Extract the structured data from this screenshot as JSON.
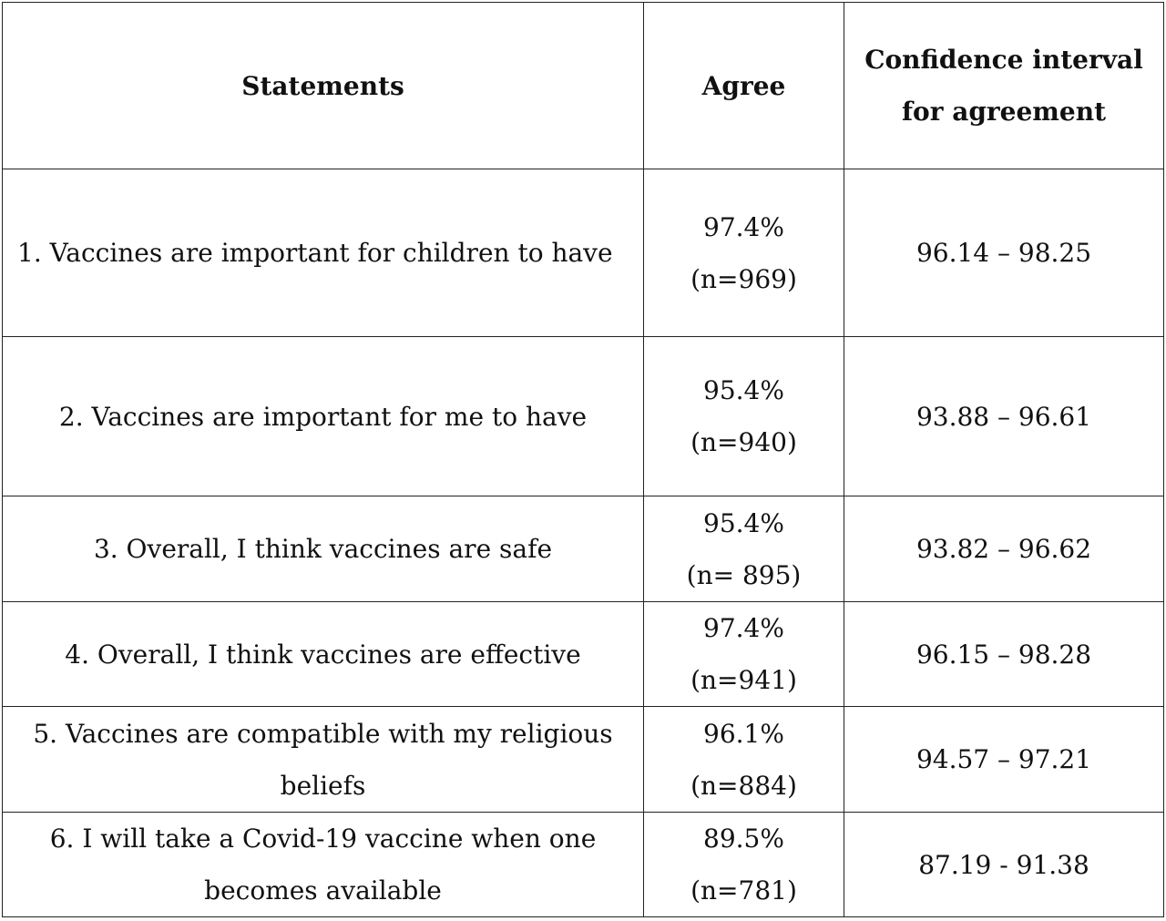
{
  "table": {
    "headers": {
      "statements": "Statements",
      "agree": "Agree",
      "ci_line1": "Confidence interval",
      "ci_line2": "for agreement"
    },
    "rows": [
      {
        "statement_line1": "1. Vaccines are important for children to have",
        "statement_line2": "",
        "agree_pct": "97.4%",
        "agree_n": "(n=969)",
        "ci": "96.14 – 98.25"
      },
      {
        "statement_line1": "2. Vaccines are important for me to have",
        "statement_line2": "",
        "agree_pct": "95.4%",
        "agree_n": "(n=940)",
        "ci": "93.88 – 96.61"
      },
      {
        "statement_line1": "3. Overall, I think vaccines are safe",
        "statement_line2": "",
        "agree_pct": "95.4%",
        "agree_n": "(n= 895)",
        "ci": "93.82 – 96.62"
      },
      {
        "statement_line1": "4. Overall, I think vaccines are effective",
        "statement_line2": "",
        "agree_pct": "97.4%",
        "agree_n": "(n=941)",
        "ci": "96.15 – 98.28"
      },
      {
        "statement_line1": "5. Vaccines are compatible with my religious",
        "statement_line2": "beliefs",
        "agree_pct": "96.1%",
        "agree_n": "(n=884)",
        "ci": "94.57 – 97.21"
      },
      {
        "statement_line1": "6. I will take a Covid-19 vaccine when one",
        "statement_line2": "becomes available",
        "agree_pct": "89.5%",
        "agree_n": "(n=781)",
        "ci": "87.19 - 91.38"
      }
    ]
  }
}
